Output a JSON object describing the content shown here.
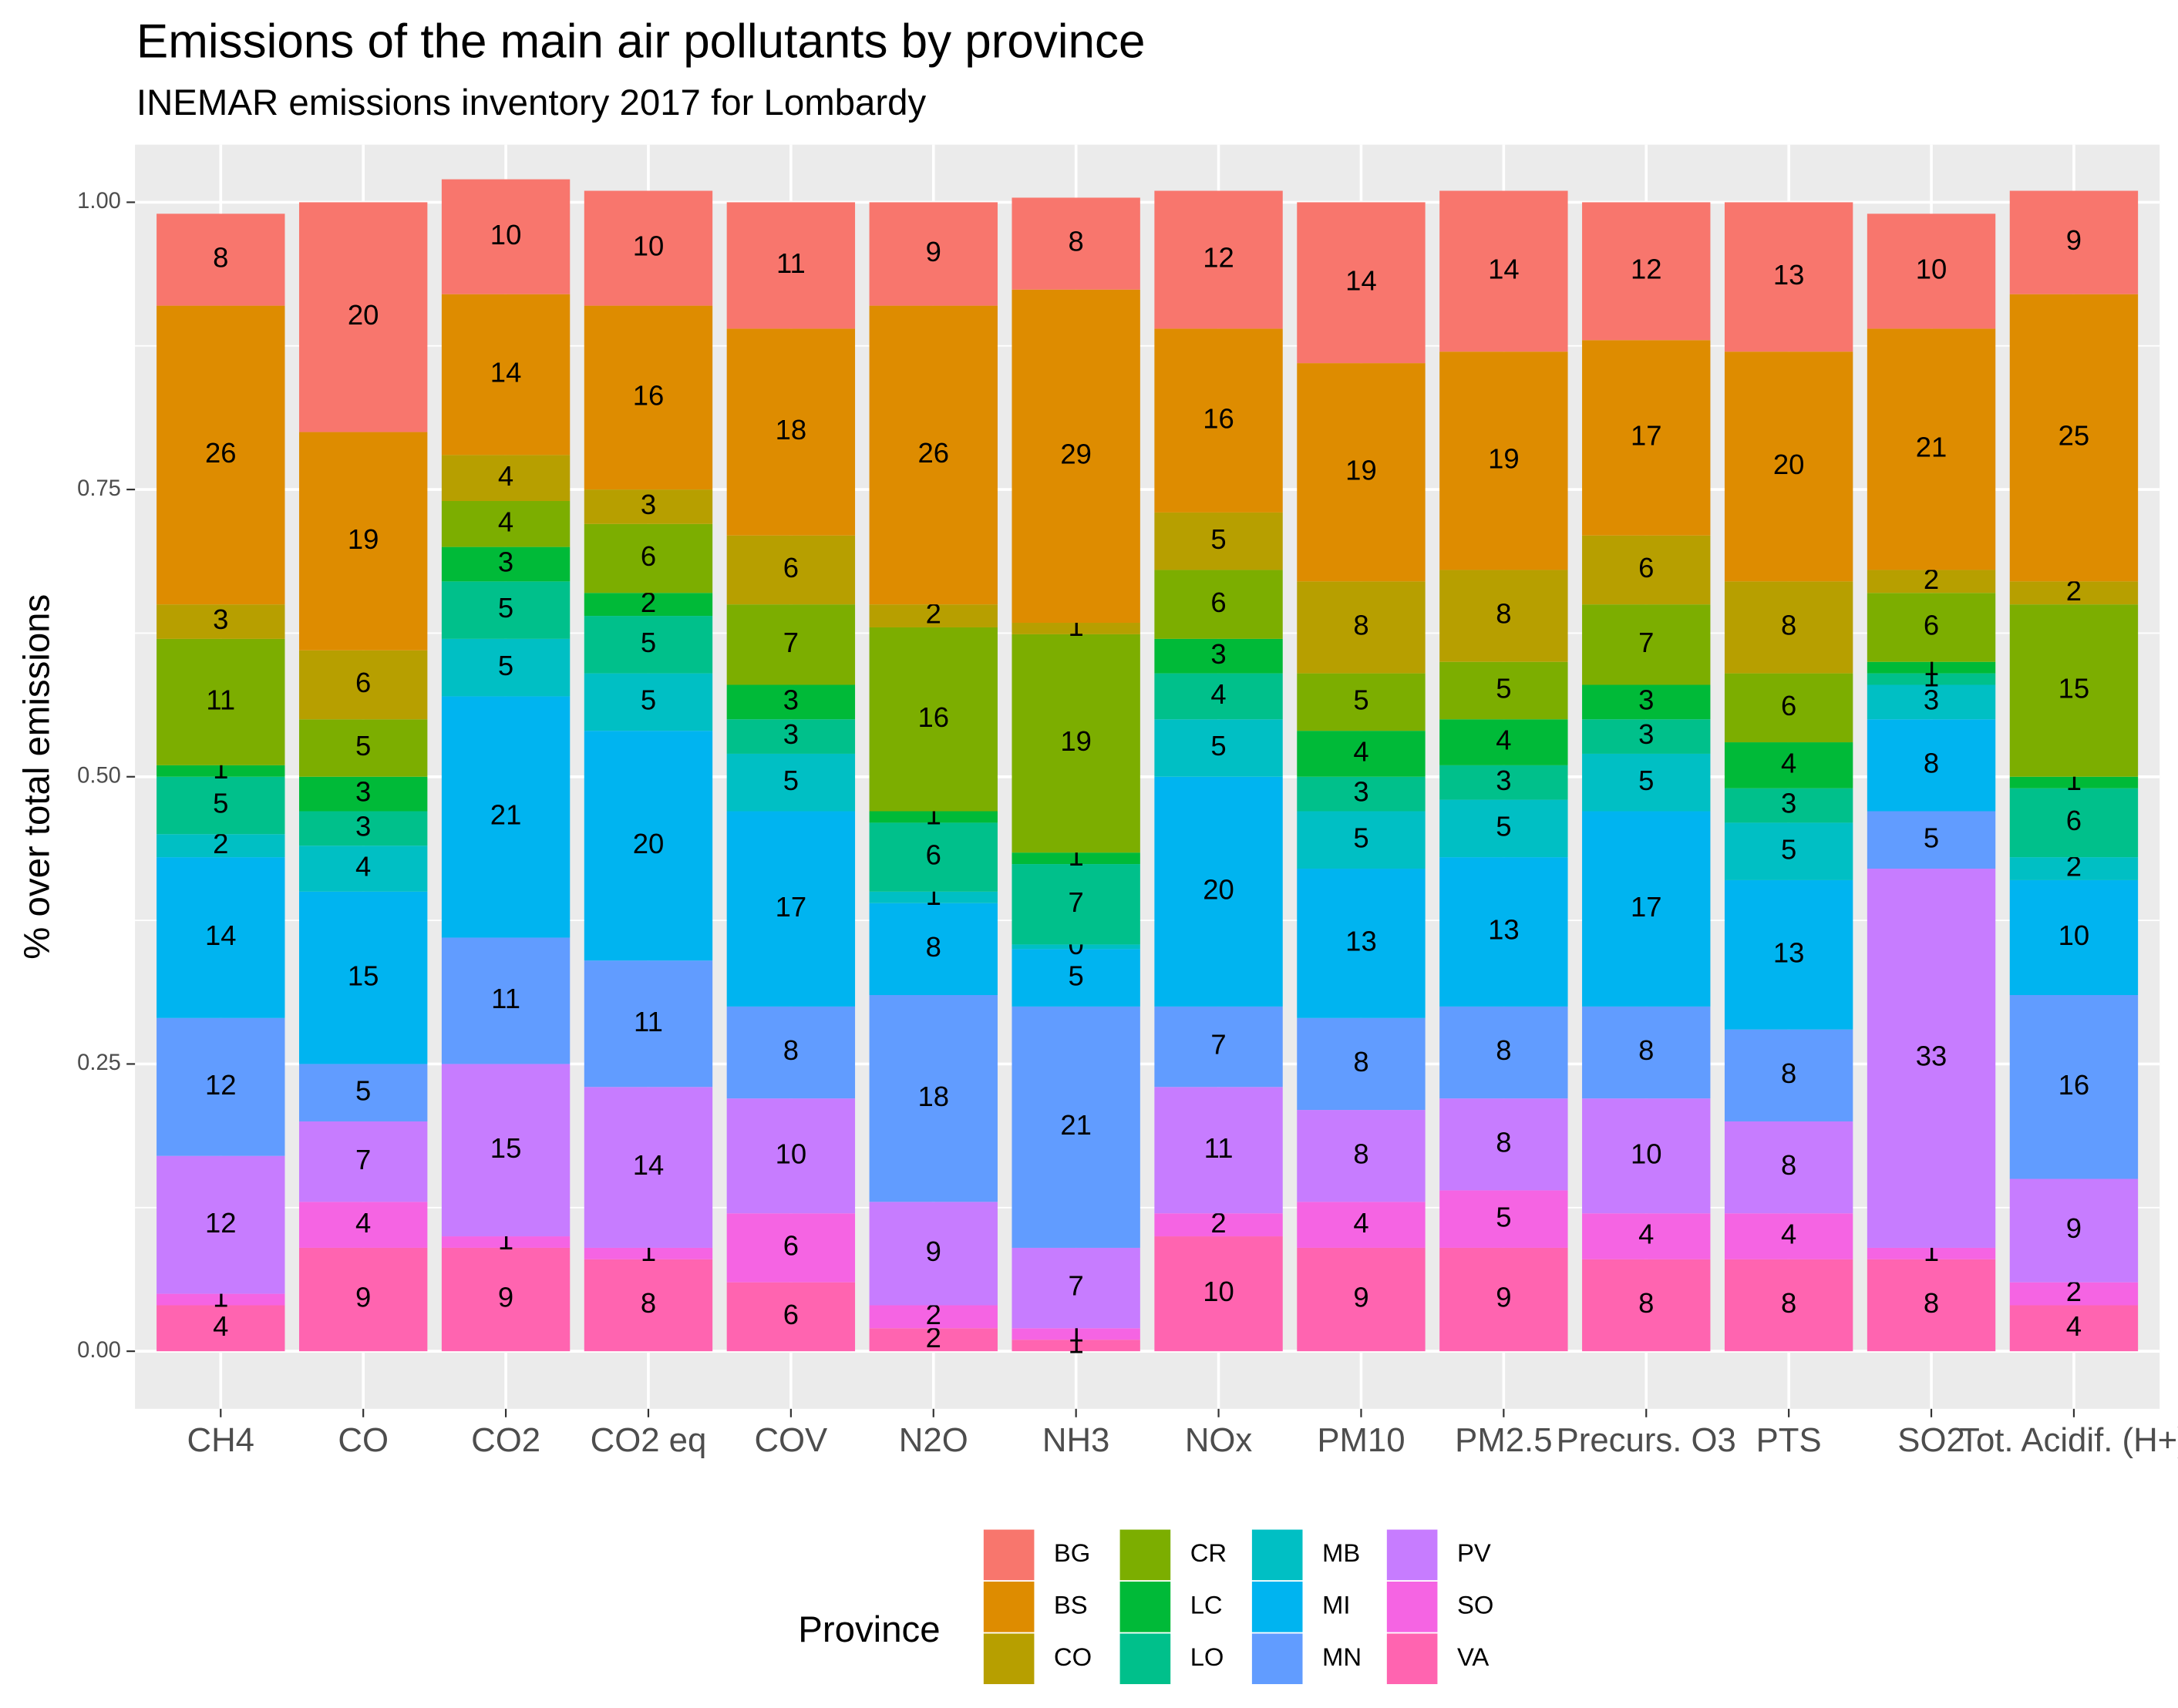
{
  "chart_data": {
    "type": "stacked_bar",
    "title": "Emissions of the main air pollutants by province",
    "subtitle": "INEMAR emissions inventory 2017 for Lombardy",
    "y_label": "% over total emissions",
    "legend_title": "Province",
    "categories": [
      "CH4",
      "CO",
      "CO2",
      "CO2 eq",
      "COV",
      "N2O",
      "NH3",
      "NOx",
      "PM10",
      "PM2.5",
      "Precurs. O3",
      "PTS",
      "SO2",
      "Tot. Acidif. (H+)"
    ],
    "ylim": [
      0,
      1
    ],
    "yticks": [
      {
        "value": 0,
        "label": "0.00"
      },
      {
        "value": 0.25,
        "label": "0.25"
      },
      {
        "value": 0.5,
        "label": "0.50"
      },
      {
        "value": 0.75,
        "label": "0.75"
      },
      {
        "value": 1,
        "label": "1.00"
      }
    ],
    "grid": true,
    "series": [
      {
        "name": "BG",
        "color": "#F8766D",
        "values": [
          0.08,
          0.2,
          0.1,
          0.1,
          0.11,
          0.09,
          0.08,
          0.12,
          0.14,
          0.14,
          0.12,
          0.13,
          0.1,
          0.09
        ],
        "value_labels": [
          "8",
          "20",
          "10",
          "10",
          "11",
          "9",
          "8",
          "12",
          "14",
          "14",
          "12",
          "13",
          "10",
          "9"
        ]
      },
      {
        "name": "BS",
        "color": "#DE8C00",
        "values": [
          0.26,
          0.19,
          0.14,
          0.16,
          0.18,
          0.26,
          0.29,
          0.16,
          0.19,
          0.19,
          0.17,
          0.2,
          0.21,
          0.25
        ],
        "value_labels": [
          "26",
          "19",
          "14",
          "16",
          "18",
          "26",
          "29",
          "16",
          "19",
          "19",
          "17",
          "20",
          "21",
          "25"
        ]
      },
      {
        "name": "CO",
        "color": "#B79F00",
        "values": [
          0.03,
          0.06,
          0.04,
          0.03,
          0.06,
          0.02,
          0.01,
          0.05,
          0.08,
          0.08,
          0.06,
          0.08,
          0.02,
          0.02
        ],
        "value_labels": [
          "3",
          "6",
          "4",
          "3",
          "6",
          "2",
          "1",
          "5",
          "8",
          "8",
          "6",
          "8",
          "2",
          "2"
        ]
      },
      {
        "name": "CR",
        "color": "#7CAE00",
        "values": [
          0.11,
          0.05,
          0.04,
          0.06,
          0.07,
          0.16,
          0.19,
          0.06,
          0.05,
          0.05,
          0.07,
          0.06,
          0.06,
          0.15
        ],
        "value_labels": [
          "11",
          "5",
          "4",
          "6",
          "7",
          "16",
          "19",
          "6",
          "5",
          "5",
          "7",
          "6",
          "6",
          "15"
        ]
      },
      {
        "name": "LC",
        "color": "#00BA38",
        "values": [
          0.01,
          0.03,
          0.03,
          0.02,
          0.03,
          0.01,
          0.01,
          0.03,
          0.04,
          0.04,
          0.03,
          0.04,
          0.01,
          0.01
        ],
        "value_labels": [
          "1",
          "3",
          "3",
          "2",
          "3",
          "1",
          "1",
          "3",
          "4",
          "4",
          "3",
          "4",
          "1",
          "1"
        ]
      },
      {
        "name": "LO",
        "color": "#00C08B",
        "values": [
          0.05,
          0.03,
          0.05,
          0.05,
          0.03,
          0.06,
          0.07,
          0.04,
          0.03,
          0.03,
          0.03,
          0.03,
          0.01,
          0.06
        ],
        "value_labels": [
          "5",
          "3",
          "5",
          "5",
          "3",
          "6",
          "7",
          "4",
          "3",
          "3",
          "3",
          "3",
          "1",
          "6"
        ]
      },
      {
        "name": "MB",
        "color": "#00BFC4",
        "values": [
          0.02,
          0.04,
          0.05,
          0.05,
          0.05,
          0.01,
          0.004,
          0.05,
          0.05,
          0.05,
          0.05,
          0.05,
          0.03,
          0.02
        ],
        "value_labels": [
          "2",
          "4",
          "5",
          "5",
          "5",
          "1",
          "0",
          "5",
          "5",
          "5",
          "5",
          "5",
          "3",
          "2"
        ]
      },
      {
        "name": "MI",
        "color": "#00B4F0",
        "values": [
          0.14,
          0.15,
          0.21,
          0.2,
          0.17,
          0.08,
          0.05,
          0.2,
          0.13,
          0.13,
          0.17,
          0.13,
          0.08,
          0.1
        ],
        "value_labels": [
          "14",
          "15",
          "21",
          "20",
          "17",
          "8",
          "5",
          "20",
          "13",
          "13",
          "17",
          "13",
          "8",
          "10"
        ]
      },
      {
        "name": "MN",
        "color": "#619CFF",
        "values": [
          0.12,
          0.05,
          0.11,
          0.11,
          0.08,
          0.18,
          0.21,
          0.07,
          0.08,
          0.08,
          0.08,
          0.08,
          0.05,
          0.16
        ],
        "value_labels": [
          "12",
          "5",
          "11",
          "11",
          "8",
          "18",
          "21",
          "7",
          "8",
          "8",
          "8",
          "8",
          "5",
          "16"
        ]
      },
      {
        "name": "PV",
        "color": "#C77CFF",
        "values": [
          0.12,
          0.07,
          0.15,
          0.14,
          0.1,
          0.09,
          0.07,
          0.11,
          0.08,
          0.08,
          0.1,
          0.08,
          0.33,
          0.09
        ],
        "value_labels": [
          "12",
          "7",
          "15",
          "14",
          "10",
          "9",
          "7",
          "11",
          "8",
          "8",
          "10",
          "8",
          "33",
          "9"
        ]
      },
      {
        "name": "SO",
        "color": "#F564E3",
        "values": [
          0.01,
          0.04,
          0.01,
          0.01,
          0.06,
          0.02,
          0.01,
          0.02,
          0.04,
          0.05,
          0.04,
          0.04,
          0.01,
          0.02
        ],
        "value_labels": [
          "1",
          "4",
          "1",
          "1",
          "6",
          "2",
          "1",
          "2",
          "4",
          "5",
          "4",
          "4",
          "1",
          "2"
        ]
      },
      {
        "name": "VA",
        "color": "#FF64B0",
        "values": [
          0.04,
          0.09,
          0.09,
          0.08,
          0.06,
          0.02,
          0.01,
          0.1,
          0.09,
          0.09,
          0.08,
          0.08,
          0.08,
          0.04
        ],
        "value_labels": [
          "4",
          "9",
          "9",
          "8",
          "6",
          "2",
          "1",
          "10",
          "9",
          "9",
          "8",
          "8",
          "8",
          "4"
        ]
      }
    ]
  }
}
